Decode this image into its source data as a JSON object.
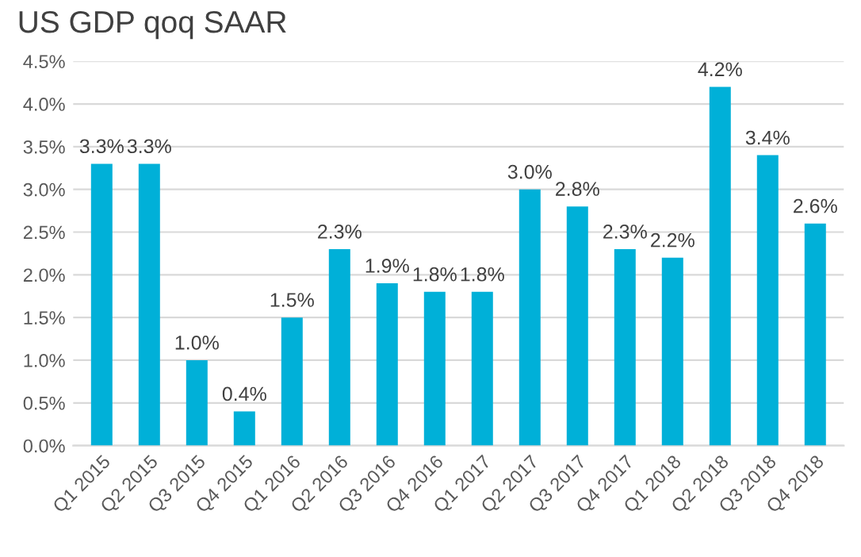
{
  "chart_data": {
    "type": "bar",
    "title": "US GDP qoq SAAR",
    "categories": [
      "Q1 2015",
      "Q2 2015",
      "Q3 2015",
      "Q4 2015",
      "Q1 2016",
      "Q2 2016",
      "Q3 2016",
      "Q4 2016",
      "Q1 2017",
      "Q2 2017",
      "Q3 2017",
      "Q4 2017",
      "Q1 2018",
      "Q2 2018",
      "Q3 2018",
      "Q4 2018"
    ],
    "values": [
      3.3,
      3.3,
      1.0,
      0.4,
      1.5,
      2.3,
      1.9,
      1.8,
      1.8,
      3.0,
      2.8,
      2.3,
      2.2,
      4.2,
      3.4,
      2.6
    ],
    "value_labels": [
      "3.3%",
      "3.3%",
      "1.0%",
      "0.4%",
      "1.5%",
      "2.3%",
      "1.9%",
      "1.8%",
      "1.8%",
      "3.0%",
      "2.8%",
      "2.3%",
      "2.2%",
      "4.2%",
      "3.4%",
      "2.6%"
    ],
    "color": "#00b0d8",
    "ylim": [
      0,
      4.5
    ],
    "yticks": [
      {
        "value": 0,
        "label": "0.0%"
      },
      {
        "value": 0.5,
        "label": "0.5%"
      },
      {
        "value": 1.0,
        "label": "1.0%"
      },
      {
        "value": 1.5,
        "label": "1.5%"
      },
      {
        "value": 2.0,
        "label": "2.0%"
      },
      {
        "value": 2.5,
        "label": "2.5%"
      },
      {
        "value": 3.0,
        "label": "3.0%"
      },
      {
        "value": 3.5,
        "label": "3.5%"
      },
      {
        "value": 4.0,
        "label": "4.0%"
      },
      {
        "value": 4.5,
        "label": "4.5%"
      }
    ],
    "grid": "y"
  }
}
